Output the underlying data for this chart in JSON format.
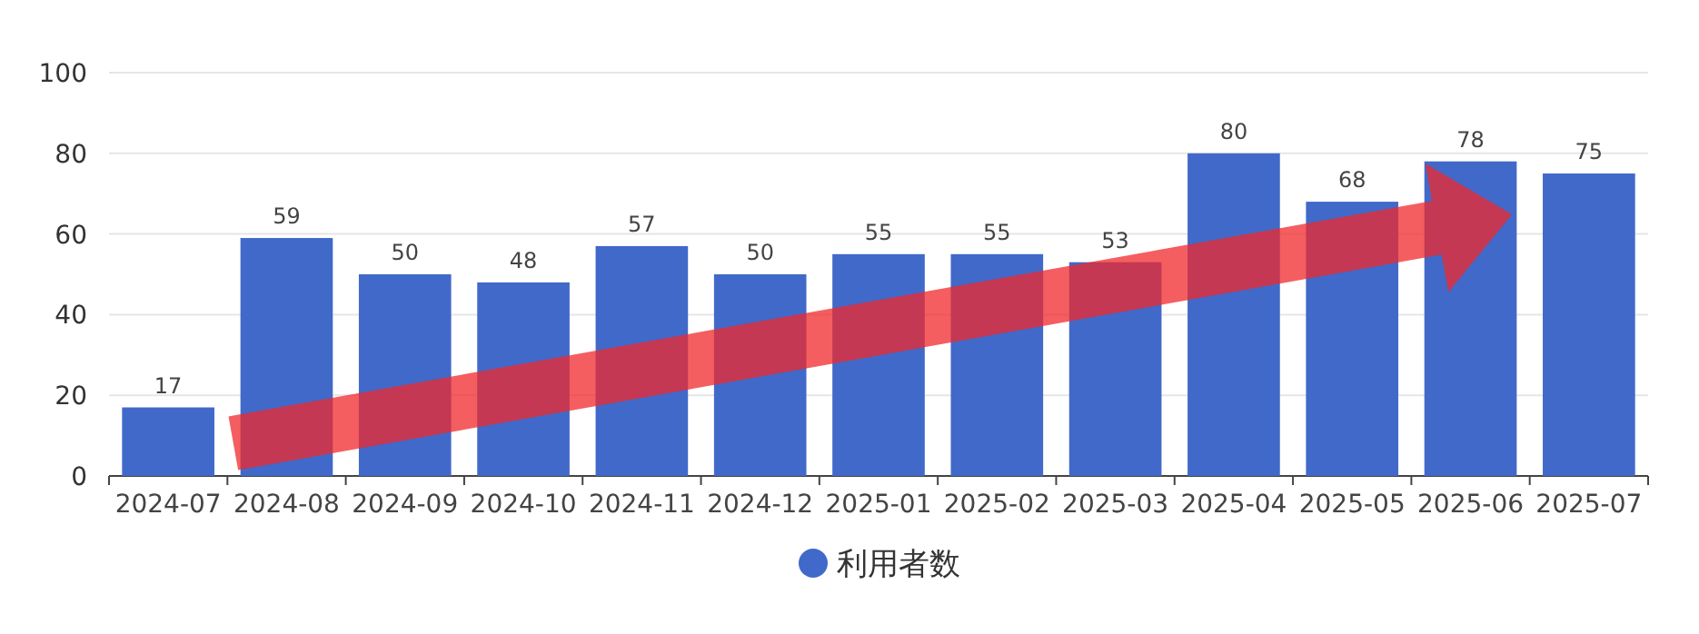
{
  "chart_data": {
    "type": "bar",
    "categories": [
      "2024-07",
      "2024-08",
      "2024-09",
      "2024-10",
      "2024-11",
      "2024-12",
      "2025-01",
      "2025-02",
      "2025-03",
      "2025-04",
      "2025-05",
      "2025-06",
      "2025-07"
    ],
    "series": [
      {
        "name": "利用者数",
        "color": "#4169c9",
        "values": [
          17,
          59,
          50,
          48,
          57,
          50,
          55,
          55,
          53,
          80,
          68,
          78,
          75
        ]
      }
    ],
    "ylim": [
      0,
      100
    ],
    "yticks": [
      0,
      20,
      40,
      60,
      80,
      100
    ],
    "grid": "y",
    "legend": "bottom",
    "data_labels": true
  }
}
